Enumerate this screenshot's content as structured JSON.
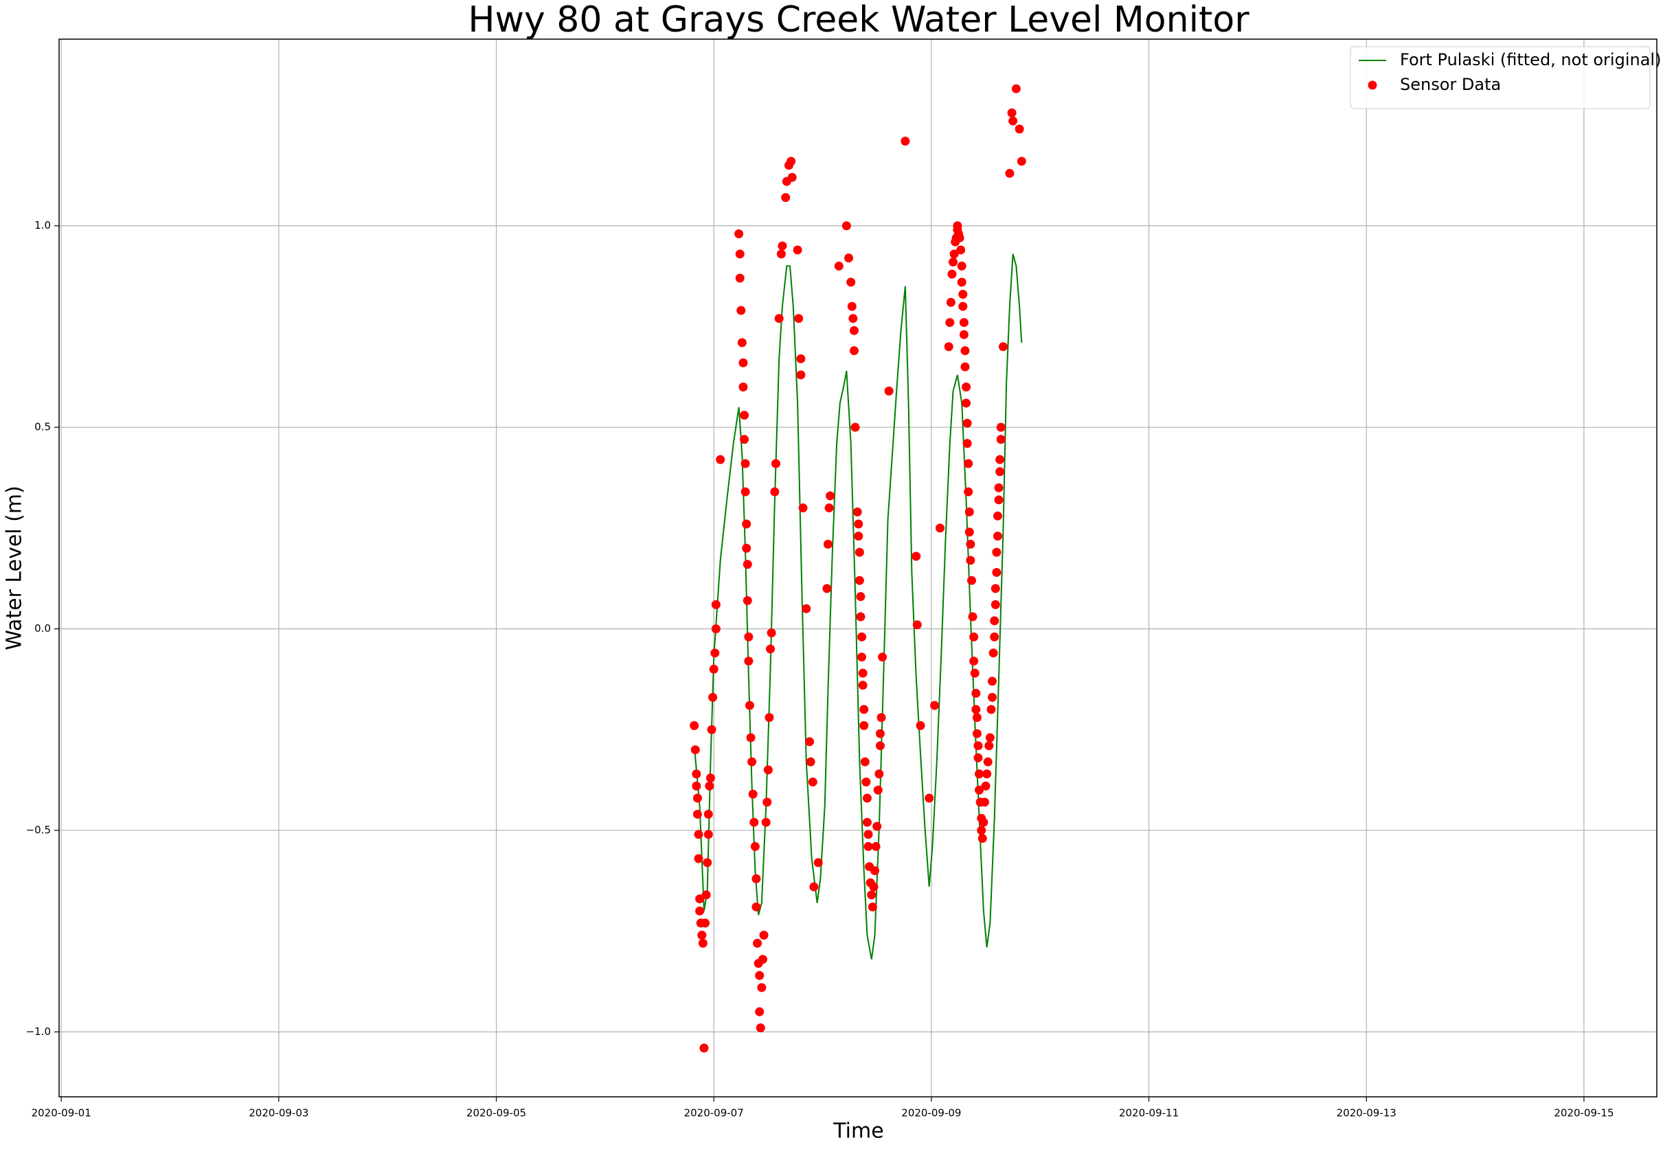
{
  "chart_data": {
    "type": "line",
    "title": "Hwy 80 at Grays Creek Water Level Monitor",
    "x_label": "Time",
    "y_label": "Water Level (m)",
    "xlim": [
      -0.02,
      14.67
    ],
    "ylim": [
      -1.161,
      1.463
    ],
    "xticks": [
      {
        "value": 0,
        "label": "2020-09-01"
      },
      {
        "value": 2,
        "label": "2020-09-03"
      },
      {
        "value": 4,
        "label": "2020-09-05"
      },
      {
        "value": 6,
        "label": "2020-09-07"
      },
      {
        "value": 8,
        "label": "2020-09-09"
      },
      {
        "value": 10,
        "label": "2020-09-11"
      },
      {
        "value": 12,
        "label": "2020-09-13"
      },
      {
        "value": 14,
        "label": "2020-09-15"
      }
    ],
    "yticks": [
      {
        "value": -1,
        "label": "−1.0"
      },
      {
        "value": -0.5,
        "label": "−0.5"
      },
      {
        "value": 0,
        "label": "0.0"
      },
      {
        "value": 0.5,
        "label": "0.5"
      },
      {
        "value": 1,
        "label": "1.0"
      }
    ],
    "grid": true,
    "legend": "upper right",
    "series": [
      {
        "name": "Fort Pulaski (fitted, not original)",
        "type": "line",
        "color": "green",
        "x": [
          5.82,
          5.87,
          5.91,
          5.94,
          5.97,
          6.0,
          6.06,
          6.12,
          6.18,
          6.23,
          6.26,
          6.29,
          6.32,
          6.35,
          6.38,
          6.41,
          6.44,
          6.48,
          6.52,
          6.56,
          6.6,
          6.63,
          6.67,
          6.7,
          6.73,
          6.77,
          6.81,
          6.85,
          6.9,
          6.95,
          6.98,
          7.02,
          7.05,
          7.09,
          7.13,
          7.16,
          7.2,
          7.22,
          7.26,
          7.3,
          7.34,
          7.38,
          7.41,
          7.45,
          7.48,
          7.52,
          7.56,
          7.6,
          7.64,
          7.68,
          7.72,
          7.76,
          7.79,
          7.82,
          7.86,
          7.9,
          7.94,
          7.98,
          8.01,
          8.05,
          8.09,
          8.13,
          8.17,
          8.2,
          8.24,
          8.28,
          8.32,
          8.36,
          8.4,
          8.44,
          8.48,
          8.51,
          8.54,
          8.58,
          8.62,
          8.66,
          8.69,
          8.72,
          8.75,
          8.78,
          8.81,
          8.83
        ],
        "values": [
          -0.29,
          -0.44,
          -0.7,
          -0.65,
          -0.33,
          -0.07,
          0.17,
          0.32,
          0.46,
          0.55,
          0.43,
          0.19,
          -0.12,
          -0.39,
          -0.6,
          -0.71,
          -0.68,
          -0.44,
          -0.1,
          0.32,
          0.67,
          0.8,
          0.9,
          0.9,
          0.8,
          0.56,
          0.09,
          -0.33,
          -0.57,
          -0.68,
          -0.62,
          -0.44,
          -0.15,
          0.19,
          0.46,
          0.56,
          0.61,
          0.64,
          0.46,
          0.09,
          -0.33,
          -0.6,
          -0.76,
          -0.82,
          -0.76,
          -0.49,
          -0.12,
          0.27,
          0.43,
          0.59,
          0.74,
          0.85,
          0.56,
          0.14,
          -0.12,
          -0.31,
          -0.49,
          -0.64,
          -0.54,
          -0.33,
          -0.07,
          0.22,
          0.46,
          0.59,
          0.63,
          0.56,
          0.32,
          0.03,
          -0.23,
          -0.47,
          -0.7,
          -0.79,
          -0.73,
          -0.47,
          -0.12,
          0.24,
          0.61,
          0.8,
          0.93,
          0.9,
          0.8,
          0.71
        ]
      },
      {
        "name": "Sensor Data",
        "type": "scatter",
        "color": "red",
        "x": [
          5.82,
          5.83,
          5.84,
          5.84,
          5.85,
          5.85,
          5.86,
          5.86,
          5.87,
          5.87,
          5.88,
          5.89,
          5.9,
          5.91,
          5.92,
          5.93,
          5.94,
          5.95,
          5.95,
          5.96,
          5.97,
          5.98,
          5.99,
          6.0,
          6.01,
          6.02,
          6.02,
          6.06,
          6.23,
          6.24,
          6.24,
          6.25,
          6.26,
          6.27,
          6.27,
          6.28,
          6.28,
          6.29,
          6.29,
          6.3,
          6.3,
          6.31,
          6.31,
          6.32,
          6.32,
          6.33,
          6.34,
          6.35,
          6.36,
          6.37,
          6.38,
          6.39,
          6.39,
          6.4,
          6.41,
          6.42,
          6.42,
          6.43,
          6.44,
          6.45,
          6.46,
          6.48,
          6.49,
          6.5,
          6.51,
          6.52,
          6.53,
          6.56,
          6.57,
          6.6,
          6.62,
          6.63,
          6.66,
          6.67,
          6.69,
          6.71,
          6.72,
          6.77,
          6.78,
          6.8,
          6.8,
          6.82,
          6.85,
          6.88,
          6.89,
          6.91,
          6.92,
          6.96,
          7.04,
          7.05,
          7.06,
          7.07,
          7.15,
          7.22,
          7.24,
          7.26,
          7.27,
          7.28,
          7.29,
          7.29,
          7.3,
          7.32,
          7.33,
          7.33,
          7.34,
          7.34,
          7.35,
          7.35,
          7.36,
          7.36,
          7.37,
          7.37,
          7.38,
          7.38,
          7.39,
          7.4,
          7.41,
          7.41,
          7.42,
          7.42,
          7.43,
          7.44,
          7.45,
          7.46,
          7.47,
          7.48,
          7.49,
          7.5,
          7.51,
          7.52,
          7.53,
          7.53,
          7.54,
          7.55,
          7.61,
          7.76,
          7.86,
          7.87,
          7.9,
          7.98,
          8.03,
          8.08,
          8.16,
          8.17,
          8.18,
          8.19,
          8.2,
          8.21,
          8.22,
          8.23,
          8.24,
          8.24,
          8.25,
          8.26,
          8.27,
          8.28,
          8.28,
          8.29,
          8.29,
          8.3,
          8.3,
          8.31,
          8.31,
          8.32,
          8.32,
          8.33,
          8.33,
          8.34,
          8.34,
          8.35,
          8.35,
          8.36,
          8.36,
          8.37,
          8.38,
          8.39,
          8.39,
          8.4,
          8.41,
          8.41,
          8.42,
          8.42,
          8.43,
          8.43,
          8.44,
          8.44,
          8.45,
          8.46,
          8.46,
          8.47,
          8.48,
          8.49,
          8.5,
          8.51,
          8.52,
          8.53,
          8.54,
          8.55,
          8.56,
          8.56,
          8.57,
          8.58,
          8.58,
          8.59,
          8.59,
          8.6,
          8.6,
          8.61,
          8.61,
          8.62,
          8.62,
          8.63,
          8.63,
          8.64,
          8.64,
          8.66,
          8.72,
          8.74,
          8.75,
          8.78,
          8.81,
          8.83
        ],
        "values": [
          -0.24,
          -0.3,
          -0.36,
          -0.39,
          -0.42,
          -0.46,
          -0.51,
          -0.57,
          -0.67,
          -0.7,
          -0.73,
          -0.76,
          -0.78,
          -1.04,
          -0.73,
          -0.66,
          -0.58,
          -0.51,
          -0.46,
          -0.39,
          -0.37,
          -0.25,
          -0.17,
          -0.1,
          -0.06,
          0.0,
          0.06,
          0.42,
          0.98,
          0.93,
          0.87,
          0.79,
          0.71,
          0.66,
          0.6,
          0.53,
          0.47,
          0.41,
          0.34,
          0.26,
          0.2,
          0.16,
          0.07,
          -0.02,
          -0.08,
          -0.19,
          -0.27,
          -0.33,
          -0.41,
          -0.48,
          -0.54,
          -0.62,
          -0.69,
          -0.78,
          -0.83,
          -0.86,
          -0.95,
          -0.99,
          -0.89,
          -0.82,
          -0.76,
          -0.48,
          -0.43,
          -0.35,
          -0.22,
          -0.05,
          -0.01,
          0.34,
          0.41,
          0.77,
          0.93,
          0.95,
          1.07,
          1.11,
          1.15,
          1.16,
          1.12,
          0.94,
          0.77,
          0.67,
          0.63,
          0.3,
          0.05,
          -0.28,
          -0.33,
          -0.38,
          -0.64,
          -0.58,
          0.1,
          0.21,
          0.3,
          0.33,
          0.9,
          1.0,
          0.92,
          0.86,
          0.8,
          0.77,
          0.74,
          0.69,
          0.5,
          0.29,
          0.26,
          0.23,
          0.19,
          0.12,
          0.08,
          0.03,
          -0.02,
          -0.07,
          -0.11,
          -0.14,
          -0.2,
          -0.24,
          -0.33,
          -0.38,
          -0.42,
          -0.48,
          -0.51,
          -0.54,
          -0.59,
          -0.63,
          -0.66,
          -0.69,
          -0.64,
          -0.6,
          -0.54,
          -0.49,
          -0.4,
          -0.36,
          -0.29,
          -0.26,
          -0.22,
          -0.07,
          0.59,
          1.21,
          0.18,
          0.01,
          -0.24,
          -0.42,
          -0.19,
          0.25,
          0.7,
          0.76,
          0.81,
          0.88,
          0.91,
          0.93,
          0.96,
          0.97,
          0.99,
          1.0,
          0.98,
          0.97,
          0.94,
          0.9,
          0.86,
          0.83,
          0.8,
          0.76,
          0.73,
          0.69,
          0.65,
          0.6,
          0.56,
          0.51,
          0.46,
          0.41,
          0.34,
          0.29,
          0.24,
          0.21,
          0.17,
          0.12,
          0.03,
          -0.02,
          -0.08,
          -0.11,
          -0.16,
          -0.2,
          -0.22,
          -0.26,
          -0.29,
          -0.32,
          -0.36,
          -0.4,
          -0.43,
          -0.47,
          -0.5,
          -0.52,
          -0.48,
          -0.43,
          -0.39,
          -0.36,
          -0.33,
          -0.29,
          -0.27,
          -0.2,
          -0.17,
          -0.13,
          -0.06,
          -0.02,
          0.02,
          0.06,
          0.1,
          0.14,
          0.19,
          0.23,
          0.28,
          0.32,
          0.35,
          0.39,
          0.42,
          0.47,
          0.5,
          0.7,
          1.13,
          1.28,
          1.26,
          1.34,
          1.24,
          1.16
        ]
      }
    ]
  }
}
